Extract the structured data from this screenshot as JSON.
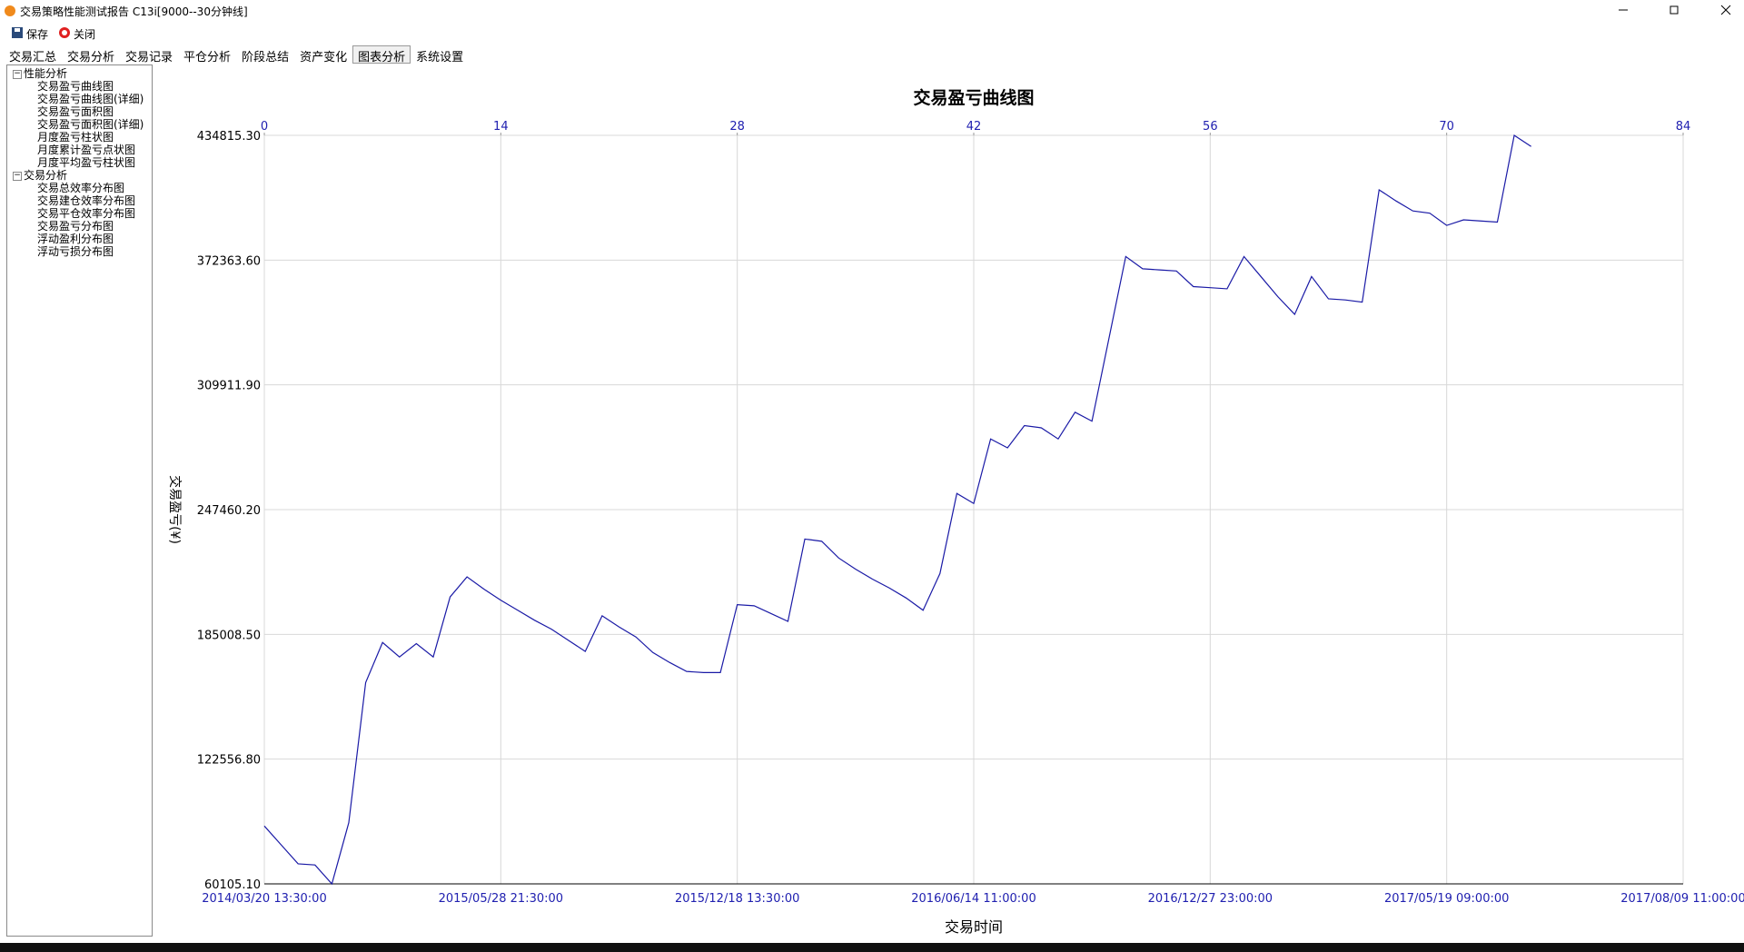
{
  "window": {
    "title": "交易策略性能测试报告 C13i[9000--30分钟线]"
  },
  "toolbar": {
    "buttons": [
      "保存",
      "关闭"
    ]
  },
  "tabs": {
    "items": [
      "交易汇总",
      "交易分析",
      "交易记录",
      "平仓分析",
      "阶段总结",
      "资产变化",
      "图表分析",
      "系统设置"
    ],
    "selected": 6
  },
  "tree": [
    {
      "label": "性能分析",
      "children": [
        "交易盈亏曲线图",
        "交易盈亏曲线图(详细)",
        "交易盈亏面积图",
        "交易盈亏面积图(详细)",
        "月度盈亏柱状图",
        "月度累计盈亏点状图",
        "月度平均盈亏柱状图"
      ]
    },
    {
      "label": "交易分析",
      "children": [
        "交易总效率分布图",
        "交易建仓效率分布图",
        "交易平仓效率分布图",
        "交易盈亏分布图",
        "浮动盈利分布图",
        "浮动亏损分布图"
      ]
    }
  ],
  "chart_data": {
    "type": "line",
    "title": "交易盈亏曲线图",
    "x_label": "交易时间",
    "y_label": "交易盈亏(¥)",
    "x": [
      0,
      1,
      2,
      3,
      4,
      5,
      6,
      7,
      8,
      9,
      10,
      11,
      12,
      13,
      14,
      15,
      16,
      17,
      18,
      19,
      20,
      21,
      22,
      23,
      24,
      25,
      26,
      27,
      28,
      29,
      30,
      31,
      32,
      33,
      34,
      35,
      36,
      37,
      38,
      39,
      40,
      41,
      42,
      43,
      44,
      45,
      46,
      47,
      48,
      49,
      50,
      51,
      52,
      53,
      54,
      55,
      56,
      57,
      58,
      59,
      60,
      61,
      62,
      63,
      64,
      65,
      66,
      67,
      68,
      69,
      70,
      71,
      72,
      73,
      74,
      75
    ],
    "values": [
      89059,
      79600,
      70127,
      69571,
      60105,
      90729,
      160886,
      180930,
      173692,
      180373,
      173692,
      203760,
      213782,
      207657,
      202089,
      197078,
      192067,
      187612,
      182044,
      176476,
      194294,
      188726,
      183715,
      175919,
      170908,
      166453,
      165896,
      165896,
      199873,
      199317,
      195419,
      191521,
      232725,
      231612,
      223260,
      217692,
      212680,
      208226,
      203215,
      197078,
      215455,
      255545,
      250534,
      282829,
      278374,
      289510,
      288397,
      282829,
      296193,
      291738,
      332941,
      374144,
      368019,
      367462,
      366906,
      359110,
      358554,
      357997,
      374144,
      364128,
      354099,
      345196,
      364128,
      352985,
      352429,
      351315,
      407551,
      401983,
      396972,
      395858,
      389733,
      392517,
      391960,
      391403,
      434815,
      429247
    ],
    "color": "#1a1aa6",
    "xlim": [
      0,
      84
    ],
    "xticks": [
      {
        "value": 0,
        "label": "2014/03/20 13:30:00"
      },
      {
        "value": 14,
        "label": "2015/05/28 21:30:00"
      },
      {
        "value": 28,
        "label": "2015/12/18 13:30:00"
      },
      {
        "value": 42,
        "label": "2016/06/14 11:00:00"
      },
      {
        "value": 56,
        "label": "2016/12/27 23:00:00"
      },
      {
        "value": 70,
        "label": "2017/05/19 09:00:00"
      },
      {
        "value": 84,
        "label": "2017/08/09 11:00:00"
      }
    ],
    "x2lim": [
      0,
      84
    ],
    "x2ticks": [
      0,
      14,
      28,
      42,
      56,
      70,
      84
    ],
    "ylim": [
      60105.1,
      434815.3
    ],
    "yticks": [
      {
        "value": 60105.1,
        "label": "60105.10"
      },
      {
        "value": 122556.8,
        "label": "122556.80"
      },
      {
        "value": 185008.5,
        "label": "185008.50"
      },
      {
        "value": 247460.2,
        "label": "247460.20"
      },
      {
        "value": 309911.9,
        "label": "309911.90"
      },
      {
        "value": 372363.6,
        "label": "372363.60"
      },
      {
        "value": 434815.3,
        "label": "434815.30"
      }
    ],
    "grid": true
  }
}
